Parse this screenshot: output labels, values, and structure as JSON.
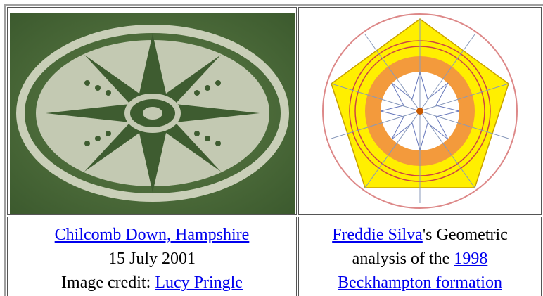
{
  "cells": [
    {
      "link": "Chilcomb Down, Hampshire",
      "date": "15 July 2001",
      "credit_label": "Image credit:",
      "credit_link": "Lucy Pringle"
    },
    {
      "link": "Freddie Silva",
      "text1": "'s Geometric",
      "text2": "analysis of the",
      "year_link": "1998",
      "formation_link": "Beckhampton formation"
    }
  ]
}
